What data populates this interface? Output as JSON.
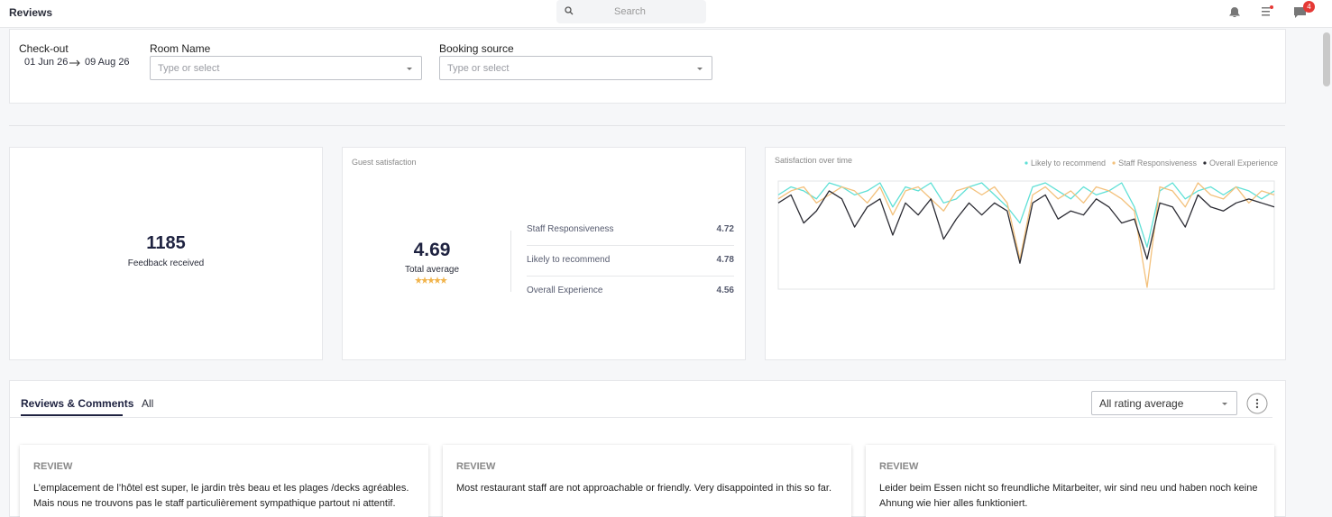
{
  "header": {
    "title": "Reviews",
    "search_placeholder": "Search",
    "notification_count": 4
  },
  "filters": {
    "checkout": {
      "label": "Check-out",
      "from": "01 Jun 26",
      "to": "09 Aug 26"
    },
    "room_name": {
      "label": "Room Name",
      "placeholder": "Type or select"
    },
    "booking_source": {
      "label": "Booking source",
      "placeholder": "Type or select"
    }
  },
  "stats": {
    "feedback": {
      "value": 1185,
      "label": "Feedback received"
    },
    "satisfaction": {
      "title": "Guest satisfaction",
      "average": 4.69,
      "average_label": "Total average",
      "rows": [
        {
          "label": "Staff Responsiveness",
          "value": 4.72
        },
        {
          "label": "Likely to recommend",
          "value": 4.78
        },
        {
          "label": "Overall Experience",
          "value": 4.56
        }
      ]
    }
  },
  "chart_data": {
    "type": "line",
    "title": "Satisfaction over time",
    "series": [
      {
        "name": "Likely to recommend",
        "color": "#5fe0d6",
        "values": [
          4.7,
          4.9,
          4.8,
          4.6,
          5.0,
          4.9,
          4.7,
          4.8,
          5.0,
          4.4,
          4.9,
          4.8,
          5.0,
          4.5,
          4.6,
          4.9,
          5.0,
          4.7,
          4.4,
          4.0,
          4.9,
          5.0,
          4.8,
          4.6,
          4.9,
          4.7,
          4.8,
          5.0,
          4.4,
          3.4,
          4.8,
          5.0,
          4.6,
          4.8,
          4.9,
          4.7,
          4.9,
          4.8,
          4.6,
          4.8
        ]
      },
      {
        "name": "Staff Responsiveness",
        "color": "#f3c17c",
        "values": [
          4.6,
          4.8,
          4.9,
          4.5,
          4.7,
          4.9,
          4.8,
          4.5,
          4.9,
          4.2,
          4.8,
          4.9,
          4.6,
          4.3,
          4.8,
          4.9,
          4.7,
          4.9,
          4.5,
          3.1,
          4.7,
          4.9,
          4.6,
          4.8,
          4.5,
          4.9,
          4.8,
          4.6,
          4.3,
          2.4,
          4.9,
          4.8,
          4.4,
          5.0,
          4.7,
          4.6,
          4.9,
          4.5,
          4.8,
          4.7
        ]
      },
      {
        "name": "Overall Experience",
        "color": "#2b2b33",
        "values": [
          4.5,
          4.7,
          4.0,
          4.3,
          4.8,
          4.6,
          3.9,
          4.4,
          4.6,
          3.7,
          4.5,
          4.2,
          4.6,
          3.6,
          4.1,
          4.5,
          4.2,
          4.5,
          4.3,
          3.0,
          4.5,
          4.7,
          4.1,
          4.3,
          4.2,
          4.6,
          4.4,
          4.0,
          4.1,
          3.1,
          4.5,
          4.4,
          3.9,
          4.7,
          4.4,
          4.3,
          4.5,
          4.6,
          4.5,
          4.4
        ]
      }
    ]
  },
  "reviews": {
    "tabs": [
      "Reviews & Comments",
      "All"
    ],
    "sort": "All rating average",
    "cards": [
      {
        "heading": "REVIEW",
        "text": "L’emplacement de l’hôtel est super, le jardin très beau et les plages /decks agréables. Mais nous ne trouvons pas le staff particulièrement sympathique partout ni attentif."
      },
      {
        "heading": "REVIEW",
        "text": "Most restaurant staff are not approachable or friendly. Very disappointed in this so far."
      },
      {
        "heading": "REVIEW",
        "text": "Leider beim Essen nicht so freundliche Mitarbeiter, wir sind neu und haben noch keine Ahnung wie hier alles funktioniert."
      }
    ]
  }
}
